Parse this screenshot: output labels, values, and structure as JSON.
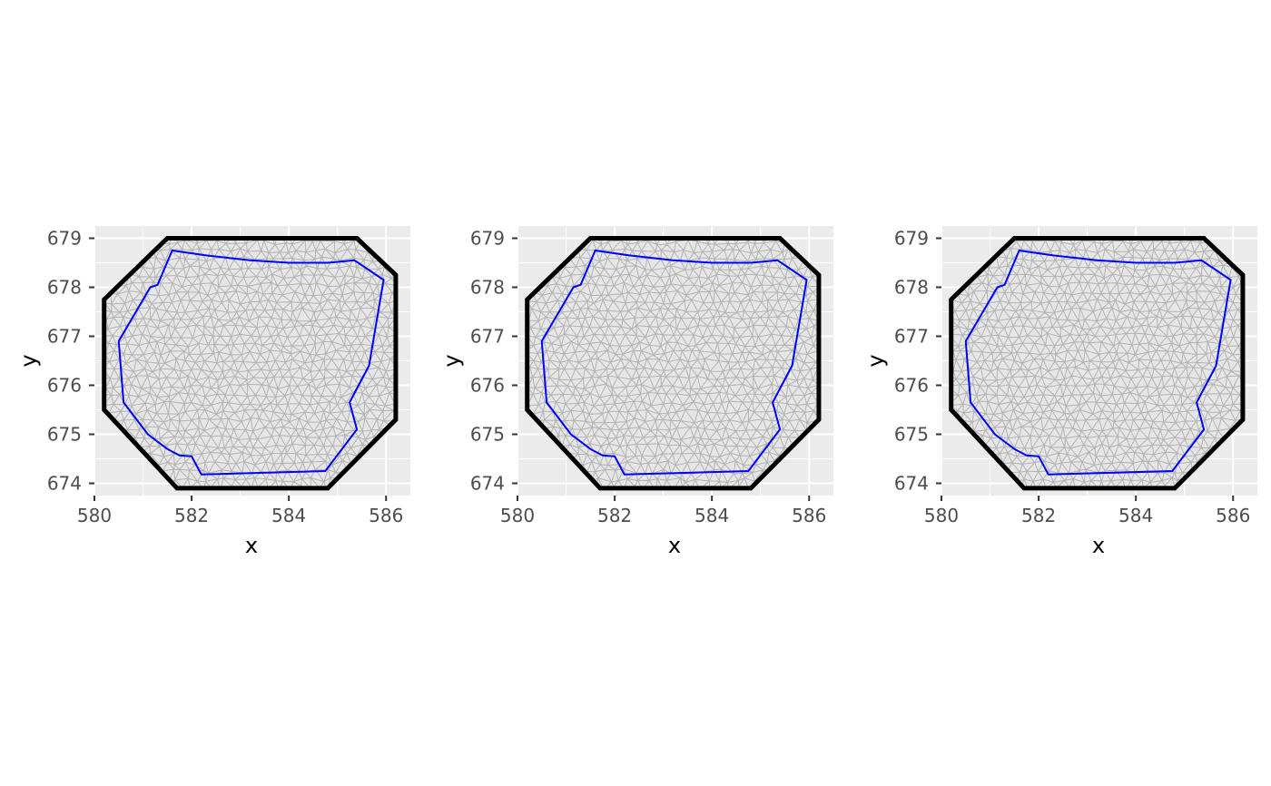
{
  "chart_data": [
    {
      "type": "mesh",
      "panel": 1,
      "xlabel": "x",
      "ylabel": "y",
      "xlim": [
        580.0,
        586.5
      ],
      "ylim": [
        673.75,
        679.25
      ],
      "xticks": [
        580,
        582,
        584,
        586
      ],
      "yticks": [
        674,
        675,
        676,
        677,
        678,
        679
      ],
      "grid": true,
      "colors": {
        "mesh": "#b3b3b3",
        "boundary": "#000000",
        "inner_polygon": "#0000ff",
        "panel_bg": "#ebebeb"
      },
      "outer_boundary": [
        [
          581.5,
          679.0
        ],
        [
          585.4,
          679.0
        ],
        [
          586.2,
          678.25
        ],
        [
          586.2,
          675.3
        ],
        [
          584.8,
          673.9
        ],
        [
          581.7,
          673.9
        ],
        [
          580.2,
          675.5
        ],
        [
          580.2,
          677.75
        ]
      ],
      "inner_polygon": [
        [
          581.6,
          678.75
        ],
        [
          582.3,
          678.65
        ],
        [
          583.2,
          678.55
        ],
        [
          584.0,
          678.5
        ],
        [
          584.8,
          678.5
        ],
        [
          585.35,
          678.55
        ],
        [
          585.95,
          678.15
        ],
        [
          585.65,
          676.4
        ],
        [
          585.25,
          675.65
        ],
        [
          585.4,
          675.1
        ],
        [
          584.75,
          674.25
        ],
        [
          582.2,
          674.18
        ],
        [
          582.0,
          674.55
        ],
        [
          581.75,
          674.57
        ],
        [
          581.5,
          674.7
        ],
        [
          581.1,
          675.0
        ],
        [
          580.6,
          675.65
        ],
        [
          580.5,
          676.9
        ],
        [
          581.15,
          678.0
        ],
        [
          581.3,
          678.05
        ]
      ]
    },
    {
      "type": "mesh",
      "panel": 2,
      "xlabel": "x",
      "ylabel": "y",
      "xlim": [
        580.0,
        586.5
      ],
      "ylim": [
        673.75,
        679.25
      ],
      "xticks": [
        580,
        582,
        584,
        586
      ],
      "yticks": [
        674,
        675,
        676,
        677,
        678,
        679
      ],
      "grid": true,
      "colors": {
        "mesh": "#b3b3b3",
        "boundary": "#000000",
        "inner_polygon": "#0000ff",
        "panel_bg": "#ebebeb"
      },
      "outer_boundary": [
        [
          581.5,
          679.0
        ],
        [
          585.4,
          679.0
        ],
        [
          586.2,
          678.25
        ],
        [
          586.2,
          675.3
        ],
        [
          584.8,
          673.9
        ],
        [
          581.7,
          673.9
        ],
        [
          580.2,
          675.5
        ],
        [
          580.2,
          677.75
        ]
      ],
      "inner_polygon": [
        [
          581.6,
          678.75
        ],
        [
          582.3,
          678.65
        ],
        [
          583.2,
          678.55
        ],
        [
          584.0,
          678.5
        ],
        [
          584.8,
          678.5
        ],
        [
          585.35,
          678.55
        ],
        [
          585.95,
          678.15
        ],
        [
          585.65,
          676.4
        ],
        [
          585.25,
          675.65
        ],
        [
          585.4,
          675.1
        ],
        [
          584.75,
          674.25
        ],
        [
          582.2,
          674.18
        ],
        [
          582.0,
          674.55
        ],
        [
          581.75,
          674.57
        ],
        [
          581.5,
          674.7
        ],
        [
          581.1,
          675.0
        ],
        [
          580.6,
          675.65
        ],
        [
          580.5,
          676.9
        ],
        [
          581.15,
          678.0
        ],
        [
          581.3,
          678.05
        ]
      ]
    },
    {
      "type": "mesh",
      "panel": 3,
      "xlabel": "x",
      "ylabel": "y",
      "xlim": [
        580.0,
        586.5
      ],
      "ylim": [
        673.75,
        679.25
      ],
      "xticks": [
        580,
        582,
        584,
        586
      ],
      "yticks": [
        674,
        675,
        676,
        677,
        678,
        679
      ],
      "grid": true,
      "colors": {
        "mesh": "#b3b3b3",
        "boundary": "#000000",
        "inner_polygon": "#0000ff",
        "panel_bg": "#ebebeb"
      },
      "outer_boundary": [
        [
          581.5,
          679.0
        ],
        [
          585.4,
          679.0
        ],
        [
          586.2,
          678.25
        ],
        [
          586.2,
          675.3
        ],
        [
          584.8,
          673.9
        ],
        [
          581.7,
          673.9
        ],
        [
          580.2,
          675.5
        ],
        [
          580.2,
          677.75
        ]
      ],
      "inner_polygon": [
        [
          581.6,
          678.75
        ],
        [
          582.3,
          678.65
        ],
        [
          583.2,
          678.55
        ],
        [
          584.0,
          678.5
        ],
        [
          584.8,
          678.5
        ],
        [
          585.35,
          678.55
        ],
        [
          585.95,
          678.15
        ],
        [
          585.65,
          676.4
        ],
        [
          585.25,
          675.65
        ],
        [
          585.4,
          675.1
        ],
        [
          584.75,
          674.25
        ],
        [
          582.2,
          674.18
        ],
        [
          582.0,
          674.55
        ],
        [
          581.75,
          674.57
        ],
        [
          581.5,
          674.7
        ],
        [
          581.1,
          675.0
        ],
        [
          580.6,
          675.65
        ],
        [
          580.5,
          676.9
        ],
        [
          581.15,
          678.0
        ],
        [
          581.3,
          678.05
        ]
      ]
    }
  ]
}
